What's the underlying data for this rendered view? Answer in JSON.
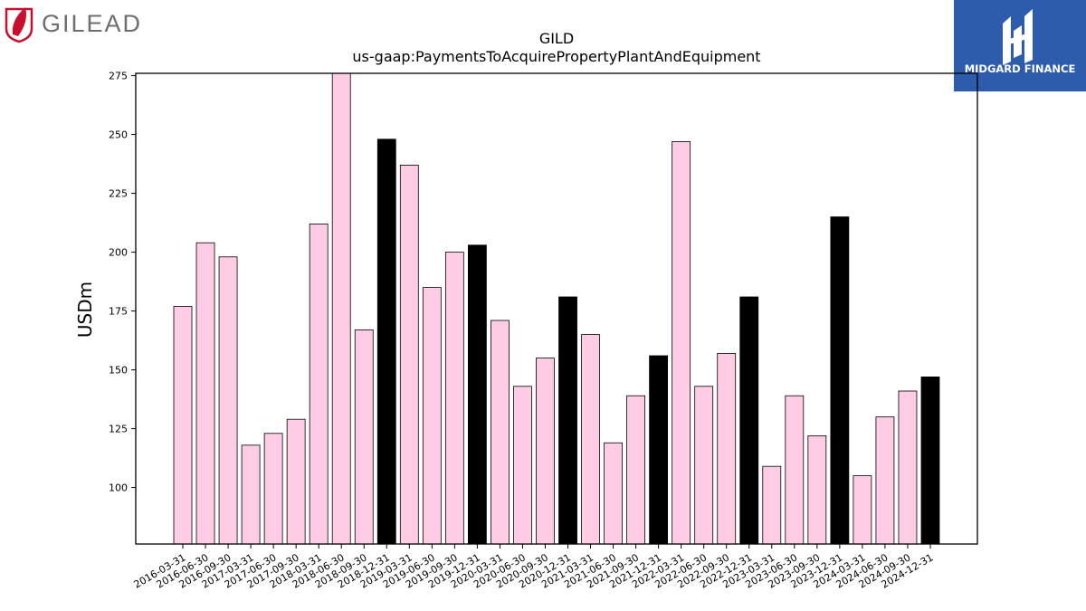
{
  "brand_left": {
    "name": "GILEAD",
    "accent": "#c8102e",
    "text_color": "#6d6e71"
  },
  "brand_right": {
    "name": "MIDGARD FINANCE",
    "bg": "#2d5cad"
  },
  "chart_data": {
    "type": "bar",
    "title": "GILD",
    "subtitle": "us-gaap:PaymentsToAcquirePropertyPlantAndEquipment",
    "xlabel": "",
    "ylabel": "USDm",
    "ylim": [
      76,
      276
    ],
    "yticks": [
      100,
      125,
      150,
      175,
      200,
      225,
      250,
      275
    ],
    "grid": false,
    "categories": [
      "2016-03-31",
      "2016-06-30",
      "2016-09-30",
      "2017-03-31",
      "2017-06-30",
      "2017-09-30",
      "2018-03-31",
      "2018-06-30",
      "2018-09-30",
      "2018-12-31",
      "2019-03-31",
      "2019-06-30",
      "2019-09-30",
      "2019-12-31",
      "2020-03-31",
      "2020-06-30",
      "2020-09-30",
      "2020-12-31",
      "2021-03-31",
      "2021-06-30",
      "2021-09-30",
      "2021-12-31",
      "2022-03-31",
      "2022-06-30",
      "2022-09-30",
      "2022-12-31",
      "2023-03-31",
      "2023-06-30",
      "2023-09-30",
      "2023-12-31",
      "2024-03-31",
      "2024-06-30",
      "2024-09-30",
      "2024-12-31"
    ],
    "values": [
      177,
      204,
      198,
      118,
      123,
      129,
      212,
      278,
      167,
      248,
      237,
      185,
      200,
      203,
      171,
      143,
      155,
      181,
      165,
      119,
      139,
      156,
      247,
      143,
      157,
      181,
      109,
      139,
      122,
      215,
      105,
      130,
      141,
      147
    ],
    "bar_colors": {
      "quarter": "#ffcce6",
      "year_end": "#000000",
      "edge": "#000000"
    }
  }
}
